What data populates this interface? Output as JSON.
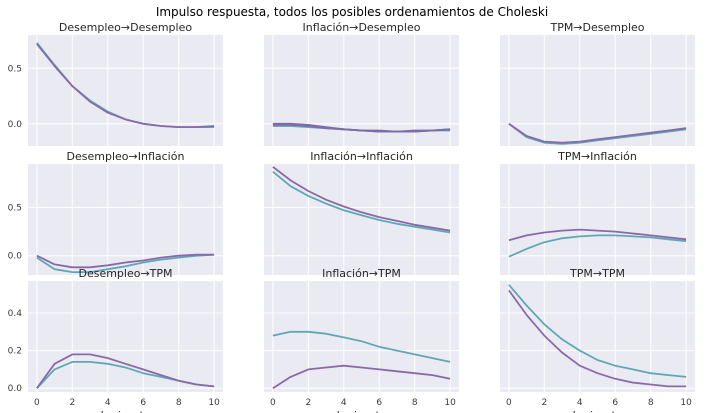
{
  "colors": {
    "background": "#eaeaf2",
    "grid": "#ffffff",
    "text": "#262626",
    "tick_text": "#3a3a3a",
    "series": [
      "#5ea8b6",
      "#6aaab4",
      "#7ea7a8",
      "#8db39a",
      "#7a6ca9",
      "#8a69a8"
    ]
  },
  "chart_data": {
    "title": "Impulso respuesta, todos los posibles ordenamientos de Choleski",
    "type": "line",
    "grid": true,
    "x": [
      0,
      1,
      2,
      3,
      4,
      5,
      6,
      7,
      8,
      9,
      10
    ],
    "xlabel": "horizonte",
    "x_ticks": [
      "0",
      "2",
      "4",
      "6",
      "8",
      "10"
    ],
    "row_y_ticks": [
      [
        "0.5",
        "0.0"
      ],
      [
        "0.5",
        "0.0"
      ],
      [
        "0.4",
        "0.2",
        "0.0"
      ]
    ],
    "row_ylim": [
      [
        -0.2,
        0.8
      ],
      [
        -0.2,
        0.95
      ],
      [
        -0.02,
        0.57
      ]
    ],
    "panels": [
      {
        "title": "Desempleo→Desempleo",
        "series": [
          {
            "values": [
              0.73,
              0.53,
              0.34,
              0.21,
              0.11,
              0.04,
              0.0,
              -0.02,
              -0.03,
              -0.03,
              -0.03
            ]
          },
          {
            "values": [
              0.72,
              0.52,
              0.34,
              0.2,
              0.1,
              0.04,
              0.0,
              -0.02,
              -0.03,
              -0.03,
              -0.02
            ]
          }
        ]
      },
      {
        "title": "Inflación→Desempleo",
        "series": [
          {
            "values": [
              -0.02,
              -0.02,
              -0.03,
              -0.04,
              -0.05,
              -0.06,
              -0.07,
              -0.07,
              -0.07,
              -0.06,
              -0.06
            ]
          },
          {
            "values": [
              -0.01,
              -0.01,
              -0.02,
              -0.04,
              -0.05,
              -0.06,
              -0.07,
              -0.07,
              -0.07,
              -0.06,
              -0.05
            ]
          },
          {
            "values": [
              0.0,
              0.0,
              -0.01,
              -0.03,
              -0.05,
              -0.06,
              -0.06,
              -0.07,
              -0.06,
              -0.06,
              -0.05
            ]
          }
        ]
      },
      {
        "title": "TPM→Desempleo",
        "series": [
          {
            "values": [
              0.0,
              -0.12,
              -0.17,
              -0.18,
              -0.17,
              -0.15,
              -0.13,
              -0.11,
              -0.09,
              -0.07,
              -0.05
            ]
          },
          {
            "values": [
              0.0,
              -0.11,
              -0.16,
              -0.17,
              -0.16,
              -0.14,
              -0.12,
              -0.1,
              -0.08,
              -0.06,
              -0.04
            ]
          }
        ]
      },
      {
        "title": "Desempleo→Inflación",
        "series": [
          {
            "values": [
              -0.02,
              -0.14,
              -0.17,
              -0.17,
              -0.14,
              -0.11,
              -0.07,
              -0.04,
              -0.02,
              0.0,
              0.01
            ]
          },
          {
            "values": [
              0.0,
              -0.09,
              -0.12,
              -0.12,
              -0.1,
              -0.07,
              -0.05,
              -0.02,
              0.0,
              0.01,
              0.01
            ]
          }
        ]
      },
      {
        "title": "Inflación→Inflación",
        "series": [
          {
            "values": [
              0.87,
              0.72,
              0.62,
              0.54,
              0.47,
              0.42,
              0.37,
              0.33,
              0.3,
              0.27,
              0.24
            ]
          },
          {
            "values": [
              0.92,
              0.78,
              0.67,
              0.58,
              0.51,
              0.45,
              0.4,
              0.36,
              0.32,
              0.29,
              0.26
            ]
          }
        ]
      },
      {
        "title": "TPM→Inflación",
        "series": [
          {
            "values": [
              -0.01,
              0.07,
              0.14,
              0.18,
              0.2,
              0.21,
              0.21,
              0.2,
              0.19,
              0.17,
              0.15
            ]
          },
          {
            "values": [
              0.16,
              0.21,
              0.24,
              0.26,
              0.27,
              0.26,
              0.25,
              0.23,
              0.21,
              0.19,
              0.17
            ]
          }
        ]
      },
      {
        "title": "Desempleo→TPM",
        "series": [
          {
            "values": [
              0.0,
              0.1,
              0.14,
              0.14,
              0.13,
              0.11,
              0.08,
              0.06,
              0.04,
              0.02,
              0.01
            ]
          },
          {
            "values": [
              0.0,
              0.13,
              0.18,
              0.18,
              0.16,
              0.13,
              0.1,
              0.07,
              0.04,
              0.02,
              0.01
            ]
          }
        ]
      },
      {
        "title": "Inflación→TPM",
        "series": [
          {
            "values": [
              0.28,
              0.3,
              0.3,
              0.29,
              0.27,
              0.25,
              0.22,
              0.2,
              0.18,
              0.16,
              0.14
            ]
          },
          {
            "values": [
              0.0,
              0.06,
              0.1,
              0.11,
              0.12,
              0.11,
              0.1,
              0.09,
              0.08,
              0.07,
              0.05
            ]
          }
        ]
      },
      {
        "title": "TPM→TPM",
        "series": [
          {
            "values": [
              0.55,
              0.44,
              0.34,
              0.26,
              0.2,
              0.15,
              0.12,
              0.1,
              0.08,
              0.07,
              0.06
            ]
          },
          {
            "values": [
              0.52,
              0.39,
              0.28,
              0.19,
              0.12,
              0.08,
              0.05,
              0.03,
              0.02,
              0.01,
              0.01
            ]
          }
        ]
      }
    ]
  }
}
